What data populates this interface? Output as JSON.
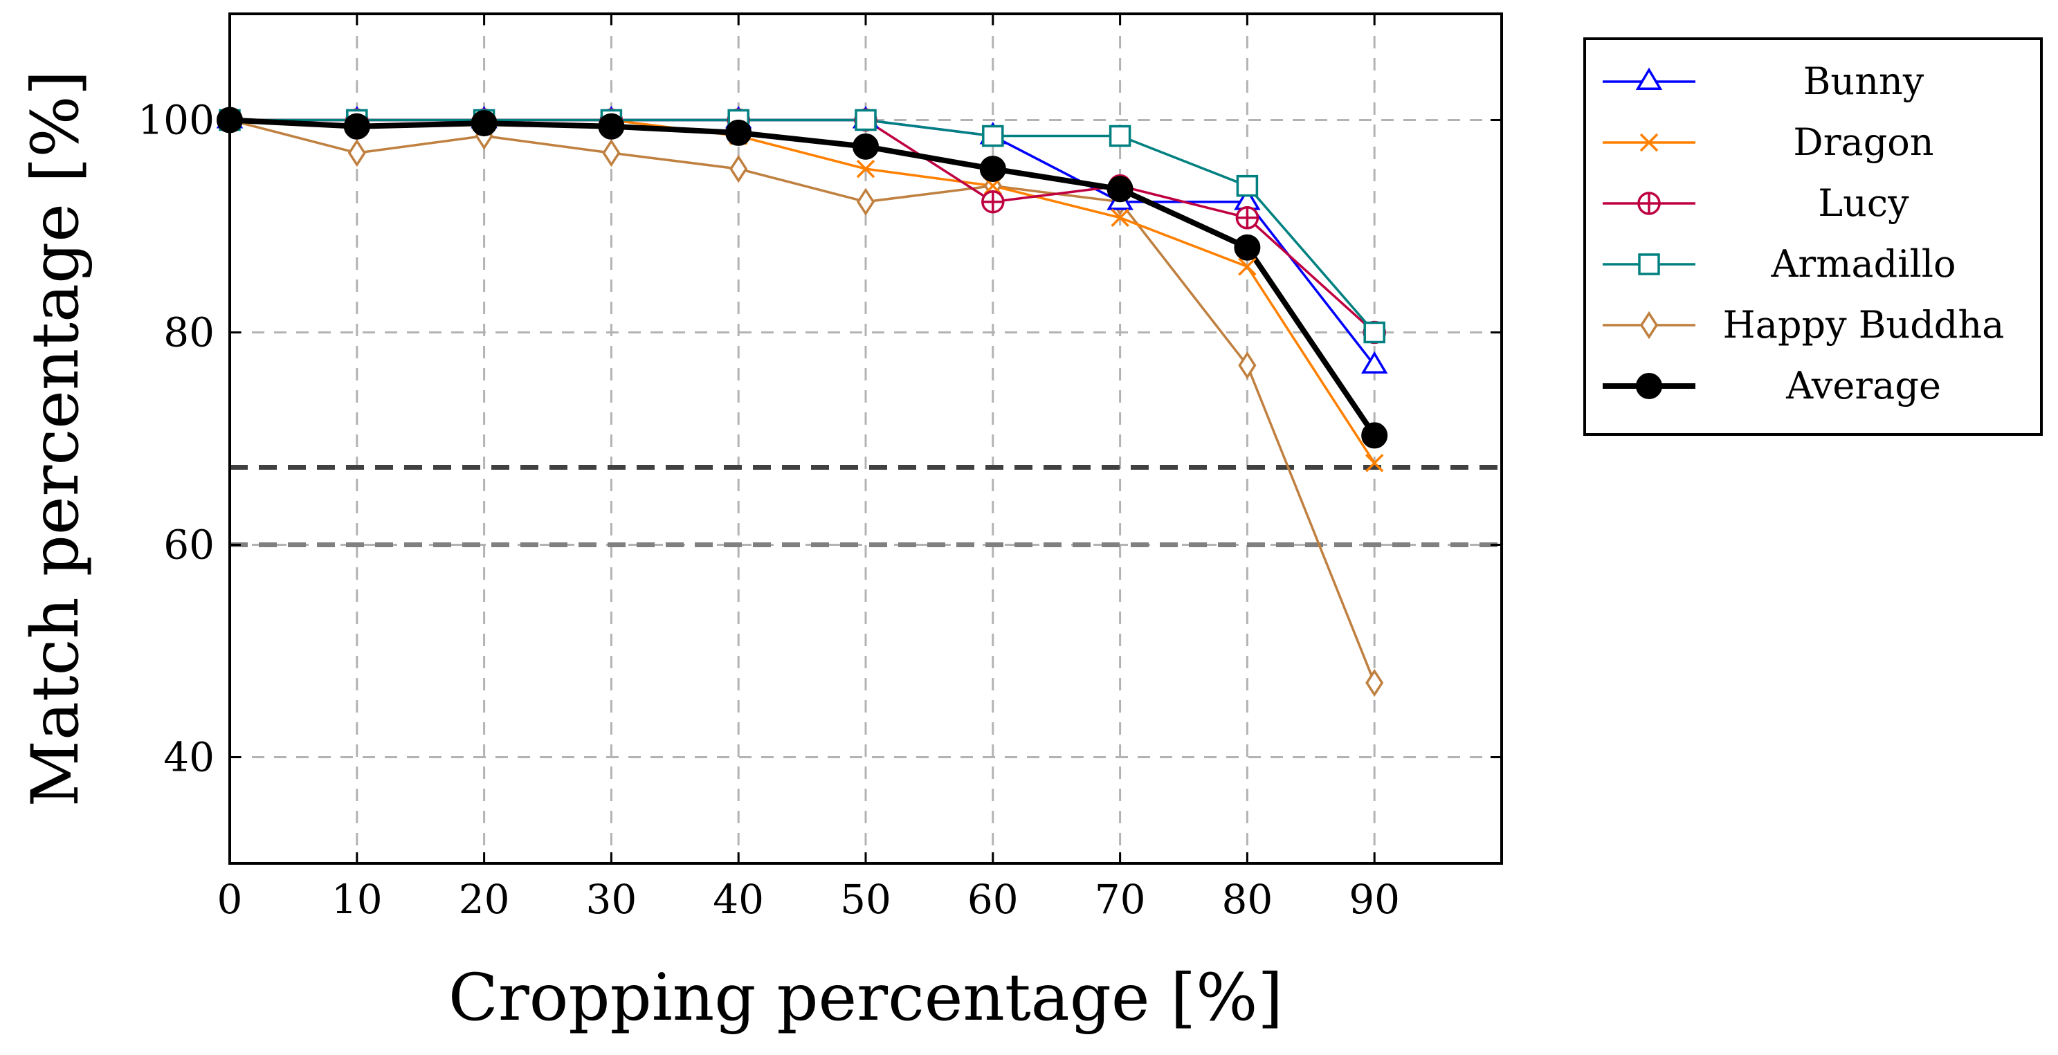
{
  "chart_data": {
    "type": "line",
    "title": "",
    "xlabel": "Cropping percentage [%]",
    "ylabel": "Match percentage [%]",
    "xlim": [
      0,
      100
    ],
    "ylim": [
      30,
      110
    ],
    "xticks": [
      0,
      10,
      20,
      30,
      40,
      50,
      60,
      70,
      80,
      90
    ],
    "yticks": [
      40,
      60,
      80,
      100
    ],
    "xtick_labels": [
      "0",
      "10",
      "20",
      "30",
      "40",
      "50",
      "60",
      "70",
      "80",
      "90"
    ],
    "ytick_labels": [
      "40",
      "60",
      "80",
      "100"
    ],
    "grid": true,
    "legend_position": "outside-right-top",
    "x": [
      0,
      10,
      20,
      30,
      40,
      50,
      60,
      70,
      80,
      90
    ],
    "series": [
      {
        "name": "Bunny",
        "color": "#0000ff",
        "marker": "triangle",
        "values": [
          100,
          100,
          100,
          100,
          100,
          100,
          98.5,
          92.3,
          92.3,
          76.9
        ]
      },
      {
        "name": "Dragon",
        "color": "#ff8000",
        "marker": "x",
        "values": [
          100,
          100,
          100,
          100,
          98.5,
          95.4,
          93.8,
          90.8,
          86.2,
          67.7
        ]
      },
      {
        "name": "Lucy",
        "color": "#bf0040",
        "marker": "oplus",
        "values": [
          100,
          100,
          100,
          100,
          100,
          100,
          92.3,
          93.8,
          90.8,
          80.0
        ]
      },
      {
        "name": "Armadillo",
        "color": "#008080",
        "marker": "square",
        "values": [
          100,
          100,
          100,
          100,
          100,
          100,
          98.5,
          98.5,
          93.8,
          80.0
        ]
      },
      {
        "name": "Happy Buddha",
        "color": "#bf8040",
        "marker": "diamond",
        "values": [
          100,
          96.9,
          98.5,
          96.9,
          95.4,
          92.3,
          93.8,
          92.3,
          76.9,
          47.0
        ]
      },
      {
        "name": "Average",
        "color": "#000000",
        "marker": "circle",
        "values": [
          100,
          99.4,
          99.7,
          99.4,
          98.8,
          97.5,
          95.4,
          93.5,
          88.0,
          70.3
        ]
      }
    ],
    "reference_lines": [
      {
        "y": 67.3,
        "color": "#404040",
        "style": "dashed"
      },
      {
        "y": 60,
        "color": "#808080",
        "style": "dashed"
      }
    ]
  }
}
